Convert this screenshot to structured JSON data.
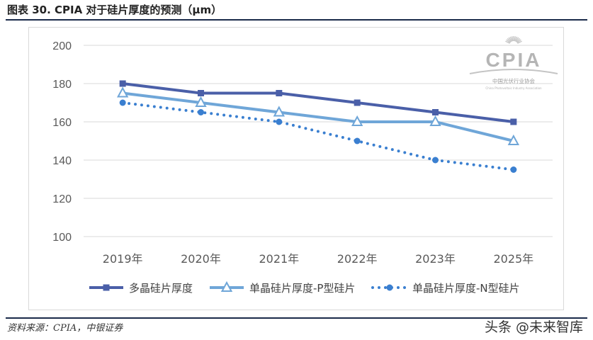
{
  "figure": {
    "title": "图表 30. CPIA 对于硅片厚度的预测（μm）",
    "source": "资料来源：CPIA，中银证券",
    "watermark": "头条 @未来智库",
    "logo": {
      "main": "CPIA",
      "sub": "中国光伏行业协会",
      "sub_en": "China Photovoltaic Industry Association"
    }
  },
  "colors": {
    "series1": "#4a5fa8",
    "series2": "#6fa6d8",
    "series3": "#3a7fd0",
    "grid": "#d9d9d9",
    "axis_text": "#595959"
  },
  "chart_data": {
    "type": "line",
    "categories": [
      "2019年",
      "2020年",
      "2021年",
      "2022年",
      "2023年",
      "2025年"
    ],
    "ylim": [
      100,
      200
    ],
    "yticks": [
      "100",
      "120",
      "140",
      "160",
      "180",
      "200"
    ],
    "yticks_values": [
      100,
      120,
      140,
      160,
      180,
      200
    ],
    "grid": true,
    "legend_position": "bottom",
    "series": [
      {
        "name": "多晶硅片厚度",
        "values": [
          180,
          175,
          175,
          170,
          165,
          160
        ],
        "marker": "square",
        "style": "solid"
      },
      {
        "name": "单晶硅片厚度-P型硅片",
        "values": [
          175,
          170,
          165,
          160,
          160,
          150
        ],
        "marker": "triangle",
        "style": "solid"
      },
      {
        "name": "单晶硅片厚度-N型硅片",
        "values": [
          170,
          165,
          160,
          150,
          140,
          135
        ],
        "marker": "circle",
        "style": "dotted"
      }
    ]
  }
}
